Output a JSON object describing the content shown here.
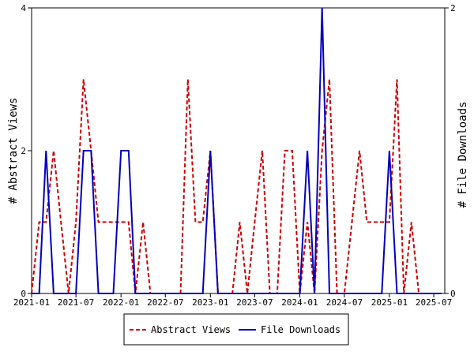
{
  "chart_data": {
    "type": "line",
    "title": "",
    "xlabel": "",
    "ylabel_left": "# Abstract Views",
    "ylabel_right": "# File Downloads",
    "x_tick_labels": [
      "2021-01",
      "2021-07",
      "2022-01",
      "2022-07",
      "2023-01",
      "2023-07",
      "2024-01",
      "2024-07",
      "2025-01",
      "2025-07"
    ],
    "x_tick_dates": [
      "2021-01-01",
      "2021-07-01",
      "2022-01-01",
      "2022-07-01",
      "2023-01-01",
      "2023-07-01",
      "2024-01-01",
      "2024-07-01",
      "2025-01-01",
      "2025-07-01"
    ],
    "xlim": [
      "2021-01-01",
      "2025-08-15"
    ],
    "ylim_left": [
      0,
      4
    ],
    "ylim_right": [
      0,
      2
    ],
    "y_ticks_left": [
      "0",
      "2",
      "4"
    ],
    "y_ticks_right": [
      "0",
      "2"
    ],
    "legend_position": "bottom",
    "series": [
      {
        "name": "Abstract Views",
        "axis": "left",
        "color": "#cc0000",
        "style": "dashed",
        "points": [
          [
            "2021-01-01",
            0
          ],
          [
            "2021-02-01",
            1
          ],
          [
            "2021-03-01",
            1
          ],
          [
            "2021-04-01",
            2
          ],
          [
            "2021-05-01",
            1
          ],
          [
            "2021-06-01",
            0
          ],
          [
            "2021-07-01",
            1
          ],
          [
            "2021-08-01",
            3
          ],
          [
            "2021-09-01",
            2
          ],
          [
            "2021-10-01",
            1
          ],
          [
            "2021-11-01",
            1
          ],
          [
            "2021-12-01",
            1
          ],
          [
            "2022-01-01",
            1
          ],
          [
            "2022-02-01",
            1
          ],
          [
            "2022-03-01",
            0
          ],
          [
            "2022-04-01",
            1
          ],
          [
            "2022-05-01",
            0
          ],
          [
            "2022-06-01",
            0
          ],
          [
            "2022-07-01",
            0
          ],
          [
            "2022-08-01",
            0
          ],
          [
            "2022-09-01",
            0
          ],
          [
            "2022-10-01",
            3
          ],
          [
            "2022-11-01",
            1
          ],
          [
            "2022-12-01",
            1
          ],
          [
            "2023-01-01",
            2
          ],
          [
            "2023-02-01",
            0
          ],
          [
            "2023-03-01",
            0
          ],
          [
            "2023-04-01",
            0
          ],
          [
            "2023-05-01",
            1
          ],
          [
            "2023-06-01",
            0
          ],
          [
            "2023-07-01",
            1
          ],
          [
            "2023-08-01",
            2
          ],
          [
            "2023-09-01",
            0
          ],
          [
            "2023-10-01",
            0
          ],
          [
            "2023-11-01",
            2
          ],
          [
            "2023-12-01",
            2
          ],
          [
            "2024-01-01",
            0
          ],
          [
            "2024-02-01",
            1
          ],
          [
            "2024-03-01",
            0
          ],
          [
            "2024-04-01",
            2
          ],
          [
            "2024-05-01",
            3
          ],
          [
            "2024-06-01",
            0
          ],
          [
            "2024-07-01",
            0
          ],
          [
            "2024-08-01",
            1
          ],
          [
            "2024-09-01",
            2
          ],
          [
            "2024-10-01",
            1
          ],
          [
            "2024-11-01",
            1
          ],
          [
            "2024-12-01",
            1
          ],
          [
            "2025-01-01",
            1
          ],
          [
            "2025-02-01",
            3
          ],
          [
            "2025-03-01",
            0
          ],
          [
            "2025-04-01",
            1
          ],
          [
            "2025-05-01",
            0
          ],
          [
            "2025-06-01",
            0
          ],
          [
            "2025-07-01",
            0
          ],
          [
            "2025-08-01",
            0
          ]
        ]
      },
      {
        "name": "File Downloads",
        "axis": "right",
        "color": "#0000bb",
        "style": "solid",
        "points": [
          [
            "2021-01-01",
            0
          ],
          [
            "2021-02-01",
            0
          ],
          [
            "2021-03-01",
            1
          ],
          [
            "2021-04-01",
            0
          ],
          [
            "2021-05-01",
            0
          ],
          [
            "2021-06-01",
            0
          ],
          [
            "2021-07-01",
            0
          ],
          [
            "2021-08-01",
            1
          ],
          [
            "2021-09-01",
            1
          ],
          [
            "2021-10-01",
            0
          ],
          [
            "2021-11-01",
            0
          ],
          [
            "2021-12-01",
            0
          ],
          [
            "2022-01-01",
            1
          ],
          [
            "2022-02-01",
            1
          ],
          [
            "2022-03-01",
            0
          ],
          [
            "2022-04-01",
            0
          ],
          [
            "2022-05-01",
            0
          ],
          [
            "2022-06-01",
            0
          ],
          [
            "2022-07-01",
            0
          ],
          [
            "2022-08-01",
            0
          ],
          [
            "2022-09-01",
            0
          ],
          [
            "2022-10-01",
            0
          ],
          [
            "2022-11-01",
            0
          ],
          [
            "2022-12-01",
            0
          ],
          [
            "2023-01-01",
            1
          ],
          [
            "2023-02-01",
            0
          ],
          [
            "2023-03-01",
            0
          ],
          [
            "2023-04-01",
            0
          ],
          [
            "2023-05-01",
            0
          ],
          [
            "2023-06-01",
            0
          ],
          [
            "2023-07-01",
            0
          ],
          [
            "2023-08-01",
            0
          ],
          [
            "2023-09-01",
            0
          ],
          [
            "2023-10-01",
            0
          ],
          [
            "2023-11-01",
            0
          ],
          [
            "2023-12-01",
            0
          ],
          [
            "2024-01-01",
            0
          ],
          [
            "2024-02-01",
            1
          ],
          [
            "2024-03-01",
            0
          ],
          [
            "2024-04-01",
            2
          ],
          [
            "2024-05-01",
            0
          ],
          [
            "2024-06-01",
            0
          ],
          [
            "2024-07-01",
            0
          ],
          [
            "2024-08-01",
            0
          ],
          [
            "2024-09-01",
            0
          ],
          [
            "2024-10-01",
            0
          ],
          [
            "2024-11-01",
            0
          ],
          [
            "2024-12-01",
            0
          ],
          [
            "2025-01-01",
            1
          ],
          [
            "2025-02-01",
            0
          ],
          [
            "2025-03-01",
            0
          ],
          [
            "2025-04-01",
            0
          ],
          [
            "2025-05-01",
            0
          ],
          [
            "2025-06-01",
            0
          ],
          [
            "2025-07-01",
            0
          ],
          [
            "2025-08-01",
            0
          ]
        ]
      }
    ]
  }
}
